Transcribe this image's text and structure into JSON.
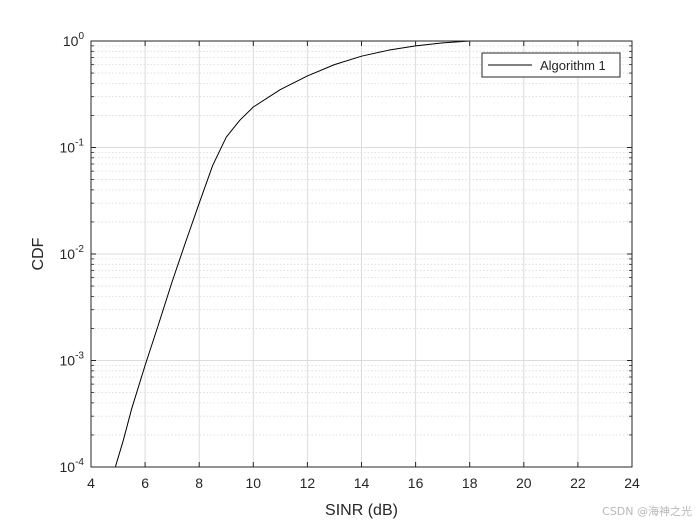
{
  "watermark": "CSDN @海神之光",
  "chart_data": {
    "type": "line",
    "xlabel": "SINR (dB)",
    "ylabel": "CDF",
    "xlim": [
      4,
      24
    ],
    "ylim": [
      0.0001,
      1
    ],
    "yscale": "log",
    "grid": true,
    "minor_grid": true,
    "x_ticks": [
      4,
      6,
      8,
      10,
      12,
      14,
      16,
      18,
      20,
      22,
      24
    ],
    "y_ticks": [
      {
        "value": 0.0001,
        "base": "10",
        "exp": "-4"
      },
      {
        "value": 0.001,
        "base": "10",
        "exp": "-3"
      },
      {
        "value": 0.01,
        "base": "10",
        "exp": "-2"
      },
      {
        "value": 0.1,
        "base": "10",
        "exp": "-1"
      },
      {
        "value": 1,
        "base": "10",
        "exp": "0"
      }
    ],
    "legend_position": "top-right",
    "series": [
      {
        "name": "Algorithm 1",
        "color": "#000000",
        "x": [
          4.9,
          5.2,
          5.5,
          6.0,
          6.5,
          7.0,
          7.5,
          8.0,
          8.5,
          9.0,
          9.5,
          10.0,
          11.0,
          12.0,
          13.0,
          14.0,
          15.0,
          16.0,
          17.0,
          18.0
        ],
        "y": [
          0.0001,
          0.00018,
          0.00035,
          0.0009,
          0.0022,
          0.0055,
          0.013,
          0.03,
          0.068,
          0.125,
          0.18,
          0.24,
          0.35,
          0.47,
          0.6,
          0.72,
          0.82,
          0.9,
          0.96,
          1.0
        ]
      }
    ]
  }
}
